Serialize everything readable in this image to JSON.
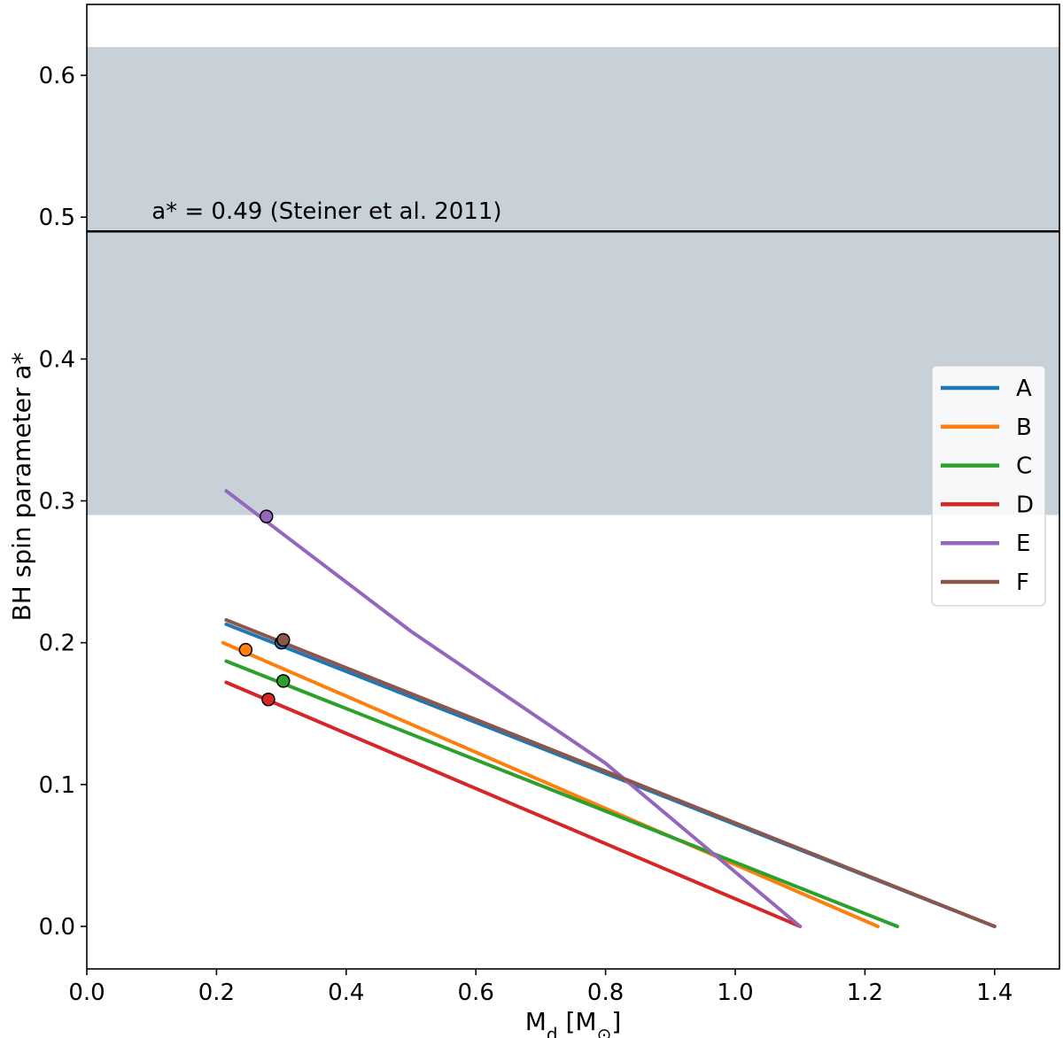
{
  "chart_data": {
    "type": "line",
    "title": "",
    "xlabel_main": "M",
    "xlabel_sub": "d",
    "xlabel_unit_open": " [M",
    "xlabel_unit_sub": "⊙",
    "xlabel_unit_close": "]",
    "ylabel": "BH spin parameter a*",
    "xlim": [
      0.0,
      1.5
    ],
    "ylim": [
      -0.03,
      0.65
    ],
    "xticks": [
      0.0,
      0.2,
      0.4,
      0.6,
      0.8,
      1.0,
      1.2,
      1.4
    ],
    "xtick_labels": [
      "0.0",
      "0.2",
      "0.4",
      "0.6",
      "0.8",
      "1.0",
      "1.2",
      "1.4"
    ],
    "yticks": [
      0.0,
      0.1,
      0.2,
      0.3,
      0.4,
      0.5,
      0.6
    ],
    "ytick_labels": [
      "0.0",
      "0.1",
      "0.2",
      "0.3",
      "0.4",
      "0.5",
      "0.6"
    ],
    "grid": false,
    "legend_position": "center-right",
    "band": {
      "y0": 0.29,
      "y1": 0.62,
      "color": "#c8d0d8"
    },
    "reference_line": {
      "y": 0.49,
      "color": "#000000",
      "label": "a* = 0.49 (Steiner et al. 2011)",
      "label_x": 0.1
    },
    "series": [
      {
        "name": "A",
        "color": "#1f77b4",
        "x": [
          0.215,
          1.4
        ],
        "y": [
          0.213,
          0.0
        ],
        "marker": [
          0.3,
          0.2
        ]
      },
      {
        "name": "B",
        "color": "#ff7f0e",
        "x": [
          0.21,
          1.22
        ],
        "y": [
          0.2,
          0.0
        ],
        "marker": [
          0.245,
          0.195
        ]
      },
      {
        "name": "C",
        "color": "#2ca02c",
        "x": [
          0.215,
          1.25
        ],
        "y": [
          0.187,
          0.0
        ],
        "marker": [
          0.303,
          0.173
        ]
      },
      {
        "name": "D",
        "color": "#d62728",
        "x": [
          0.215,
          1.1
        ],
        "y": [
          0.172,
          0.0
        ],
        "marker": [
          0.28,
          0.16
        ]
      },
      {
        "name": "E",
        "color": "#9467bd",
        "x": [
          0.215,
          0.5,
          0.8,
          1.1
        ],
        "y": [
          0.307,
          0.208,
          0.115,
          0.0
        ],
        "marker": [
          0.277,
          0.289
        ]
      },
      {
        "name": "F",
        "color": "#8c564b",
        "x": [
          0.215,
          1.4
        ],
        "y": [
          0.216,
          0.0
        ],
        "marker": [
          0.303,
          0.202
        ]
      }
    ]
  }
}
